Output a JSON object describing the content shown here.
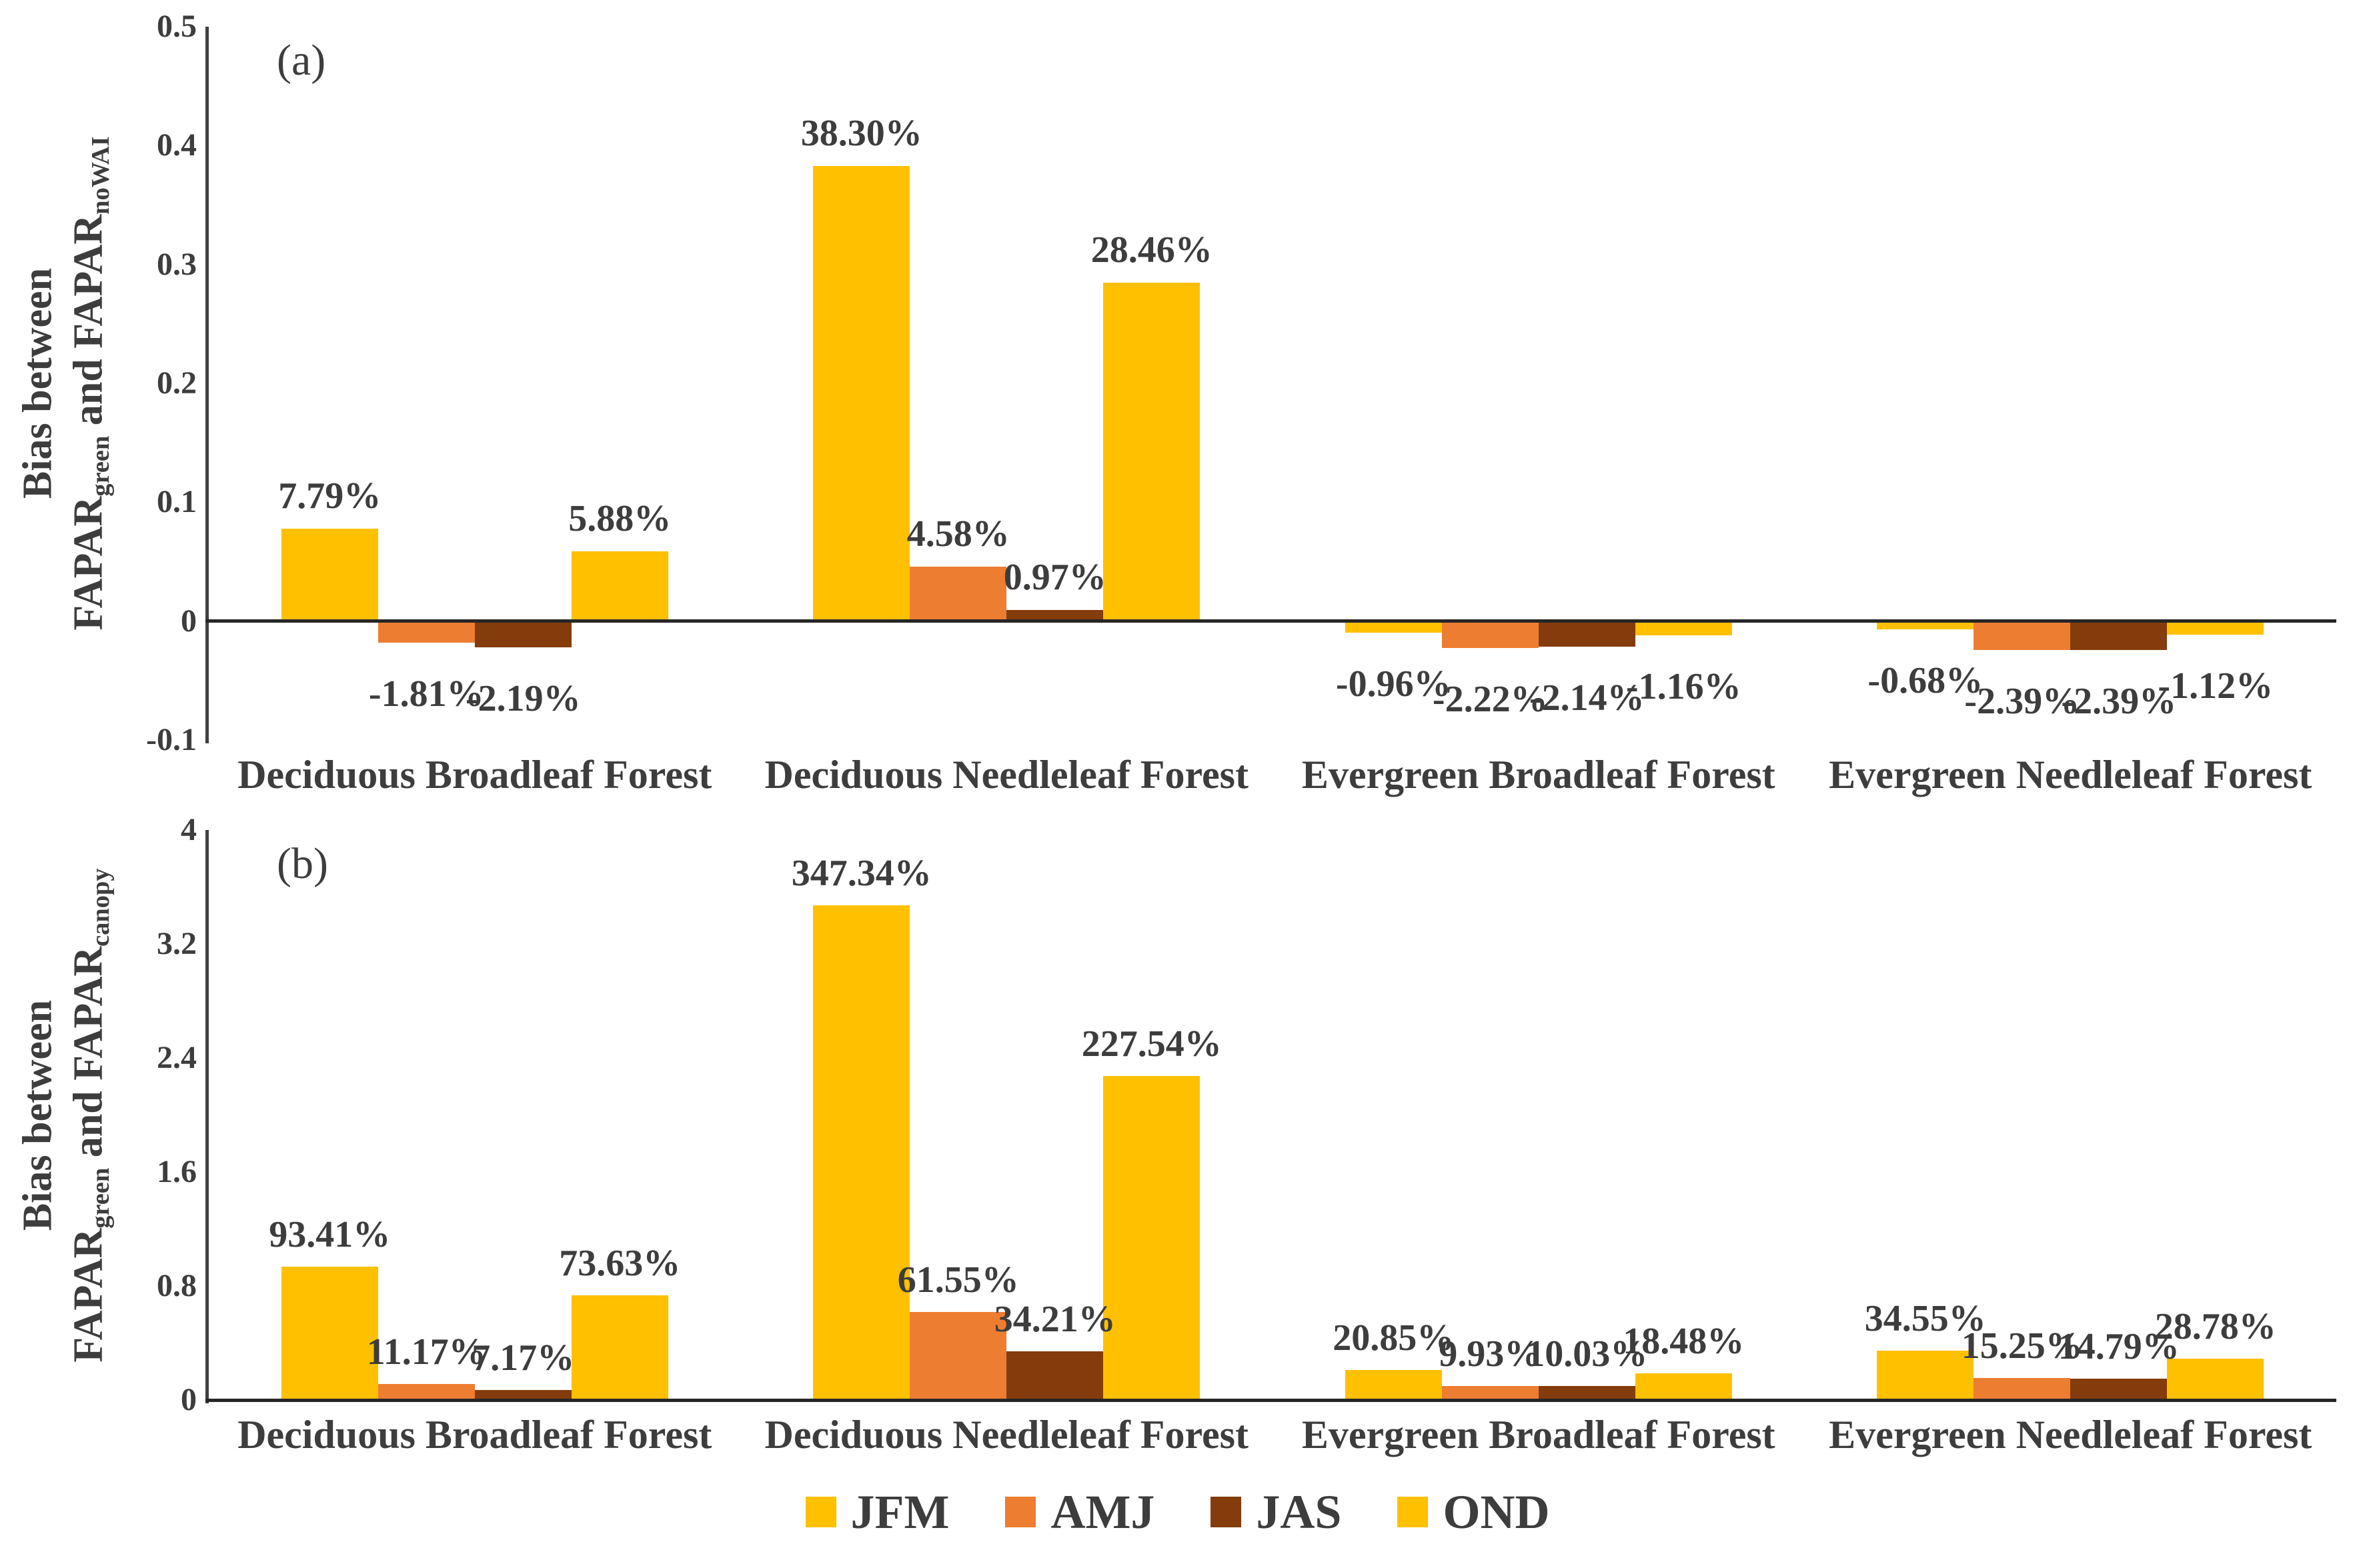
{
  "figure": {
    "background": "#ffffff",
    "text_color": "#3d3d3d",
    "axis_color": "#404040",
    "zero_line_color": "#262626"
  },
  "legend": {
    "position": "bottom-center",
    "items": [
      {
        "label": "JFM",
        "color": "#FFC000"
      },
      {
        "label": "AMJ",
        "color": "#ED7D31"
      },
      {
        "label": "JAS",
        "color": "#843C0C"
      },
      {
        "label": "OND",
        "color": "#FFC000"
      }
    ]
  },
  "chart_data": [
    {
      "type": "bar",
      "panel_label": "(a)",
      "ylabel_line1": "Bias between",
      "ylabel_line2": "FAPAR|green| and FAPAR|noWAI|",
      "categories": [
        "Deciduous Broadleaf Forest",
        "Deciduous Needleleaf Forest",
        "Evergreen Broadleaf Forest",
        "Evergreen Needleleaf Forest"
      ],
      "series": [
        {
          "name": "JFM",
          "color": "#FFC000",
          "values": [
            0.0779,
            0.383,
            -0.0096,
            -0.0068
          ],
          "labels": [
            "7.79%",
            "38.30%",
            "-0.96%",
            "-0.68%"
          ]
        },
        {
          "name": "AMJ",
          "color": "#ED7D31",
          "values": [
            -0.0181,
            0.0458,
            -0.0222,
            -0.0239
          ],
          "labels": [
            "-1.81%",
            "4.58%",
            "-2.22%",
            "-2.39%"
          ]
        },
        {
          "name": "JAS",
          "color": "#843C0C",
          "values": [
            -0.0219,
            0.0097,
            -0.0214,
            -0.0239
          ],
          "labels": [
            "-2.19%",
            "0.97%",
            "-2.14%",
            "-2.39%"
          ]
        },
        {
          "name": "OND",
          "color": "#FFC000",
          "values": [
            0.0588,
            0.2846,
            -0.0116,
            -0.0112
          ],
          "labels": [
            "5.88%",
            "28.46%",
            "-1.16%",
            "-1.12%"
          ]
        }
      ],
      "ylim": [
        -0.1,
        0.5
      ],
      "yticks": [
        0.5,
        0.4,
        0.3,
        0.2,
        0.1,
        0,
        -0.1
      ],
      "ytick_labels": [
        "0.5",
        "0.4",
        "0.3",
        "0.2",
        "0.1",
        "0",
        "-0.1"
      ],
      "grid": false,
      "legend_position": "bottom"
    },
    {
      "type": "bar",
      "panel_label": "(b)",
      "ylabel_line1": "Bias between",
      "ylabel_line2": "FAPAR|green| and FAPAR|canopy|",
      "categories": [
        "Deciduous Broadleaf Forest",
        "Deciduous Needleleaf Forest",
        "Evergreen Broadleaf Forest",
        "Evergreen Needleleaf Forest"
      ],
      "series": [
        {
          "name": "JFM",
          "color": "#FFC000",
          "values": [
            0.9341,
            3.4734,
            0.2085,
            0.3455
          ],
          "labels": [
            "93.41%",
            "347.34%",
            "20.85%",
            "34.55%"
          ]
        },
        {
          "name": "AMJ",
          "color": "#ED7D31",
          "values": [
            0.1117,
            0.6155,
            0.0993,
            0.1525
          ],
          "labels": [
            "11.17%",
            "61.55%",
            "9.93%",
            "15.25%"
          ]
        },
        {
          "name": "JAS",
          "color": "#843C0C",
          "values": [
            0.0717,
            0.3421,
            0.1003,
            0.1479
          ],
          "labels": [
            "7.17%",
            "34.21%",
            "10.03%",
            "14.79%"
          ]
        },
        {
          "name": "OND",
          "color": "#FFC000",
          "values": [
            0.7363,
            2.2754,
            0.1848,
            0.2878
          ],
          "labels": [
            "73.63%",
            "227.54%",
            "18.48%",
            "28.78%"
          ]
        }
      ],
      "ylim": [
        0,
        4
      ],
      "yticks": [
        4,
        3.2,
        2.4,
        1.6,
        0.8,
        0
      ],
      "ytick_labels": [
        "4",
        "3.2",
        "2.4",
        "1.6",
        "0.8",
        "0"
      ],
      "grid": false,
      "legend_position": "bottom"
    }
  ]
}
